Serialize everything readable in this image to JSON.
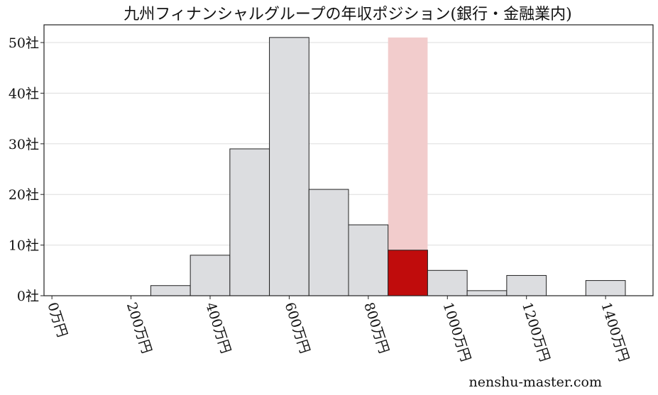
{
  "chart_data": {
    "type": "bar",
    "title": "九州フィナンシャルグループの年収ポジション(銀行・金融業内)",
    "xlabel": "",
    "ylabel": "",
    "bin_width": 100,
    "bins": [
      {
        "center": 300,
        "value": 2
      },
      {
        "center": 400,
        "value": 8
      },
      {
        "center": 500,
        "value": 29
      },
      {
        "center": 600,
        "value": 51
      },
      {
        "center": 700,
        "value": 21
      },
      {
        "center": 800,
        "value": 14
      },
      {
        "center": 900,
        "value": 9,
        "highlight": true
      },
      {
        "center": 1000,
        "value": 5
      },
      {
        "center": 1100,
        "value": 1
      },
      {
        "center": 1200,
        "value": 4
      },
      {
        "center": 1400,
        "value": 3
      }
    ],
    "highlight_band": {
      "center": 900,
      "value": 51
    },
    "xlim": [
      -20,
      1520
    ],
    "ylim": [
      0,
      53.5
    ],
    "x_ticks": [
      {
        "value": 0,
        "label": "0万円"
      },
      {
        "value": 200,
        "label": "200万円"
      },
      {
        "value": 400,
        "label": "400万円"
      },
      {
        "value": 600,
        "label": "600万円"
      },
      {
        "value": 800,
        "label": "800万円"
      },
      {
        "value": 1000,
        "label": "1000万円"
      },
      {
        "value": 1200,
        "label": "1200万円"
      },
      {
        "value": 1400,
        "label": "1400万円"
      }
    ],
    "y_ticks": [
      {
        "value": 0,
        "label": "0社"
      },
      {
        "value": 10,
        "label": "10社"
      },
      {
        "value": 20,
        "label": "20社"
      },
      {
        "value": 30,
        "label": "30社"
      },
      {
        "value": 40,
        "label": "40社"
      },
      {
        "value": 50,
        "label": "50社"
      }
    ],
    "grid": "horizontal",
    "colors": {
      "bar": "#dcdde0",
      "highlight": "#c00c0c",
      "band": "#f2cccc",
      "grid": "#dddddd"
    }
  },
  "watermark": "nenshu-master.com"
}
